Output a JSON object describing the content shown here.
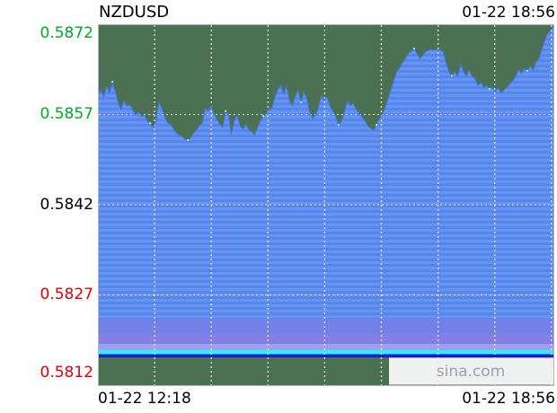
{
  "header": {
    "symbol": "NZDUSD",
    "timestamp": "01-22 18:56"
  },
  "axis": {
    "x_start_label": "01-22 12:18",
    "x_end_label": "01-22 18:56"
  },
  "watermark": {
    "text": "sina.com"
  },
  "palette": {
    "page_bg": "#ffffff",
    "plot_bg": "#4b7152",
    "border": "#b2b2b2",
    "grid": "#e2e6e2",
    "fill_stripe_a": "#6495f3",
    "fill_stripe_b": "#5884ec",
    "band_purple_1": "#7181e8",
    "band_purple_2": "#8280e4",
    "band_periwinkle": "#9f9ff0",
    "band_cyan": "#2cf0f4",
    "band_navy": "#1818cf",
    "line": "#4477dd",
    "speckle": "#86f8ff",
    "label_green": "#00aa22",
    "label_black": "#000000",
    "label_red": "#e00000",
    "watermark_bg": "#eff1f1",
    "watermark_text": "#9aa3ab"
  },
  "chart_data": {
    "type": "area",
    "title": "NZDUSD",
    "xlabel": "",
    "ylabel": "",
    "x_range_labels": [
      "01-22 12:18",
      "01-22 18:56"
    ],
    "ylim": [
      0.5812,
      0.5872
    ],
    "grid": true,
    "x_divisions": 8,
    "y_ticks": [
      {
        "value": 0.5872,
        "label": "0.5872",
        "color_key": "label_green"
      },
      {
        "value": 0.5857,
        "label": "0.5857",
        "color_key": "label_green"
      },
      {
        "value": 0.5842,
        "label": "0.5842",
        "color_key": "label_black"
      },
      {
        "value": 0.5827,
        "label": "0.5827",
        "color_key": "label_red"
      },
      {
        "value": 0.5812,
        "label": "0.5812",
        "color_key": "label_red"
      }
    ],
    "series_name": "NZDUSD price",
    "values": [
      0.58601,
      0.58611,
      0.58599,
      0.58617,
      0.58605,
      0.58623,
      0.58607,
      0.58589,
      0.58578,
      0.58593,
      0.58584,
      0.58586,
      0.58577,
      0.58569,
      0.58574,
      0.58566,
      0.58569,
      0.58559,
      0.58554,
      0.58548,
      0.58559,
      0.5859,
      0.58581,
      0.58566,
      0.58556,
      0.58553,
      0.58547,
      0.58539,
      0.58536,
      0.58533,
      0.58529,
      0.58526,
      0.58532,
      0.58539,
      0.58544,
      0.58551,
      0.58556,
      0.58581,
      0.58575,
      0.58584,
      0.58571,
      0.58562,
      0.58554,
      0.58548,
      0.58574,
      0.58569,
      0.58536,
      0.58559,
      0.58569,
      0.58551,
      0.58545,
      0.58554,
      0.58544,
      0.58541,
      0.58536,
      0.58548,
      0.58559,
      0.58566,
      0.58571,
      0.58578,
      0.58581,
      0.58599,
      0.58611,
      0.58618,
      0.58604,
      0.58617,
      0.58593,
      0.58584,
      0.58599,
      0.58611,
      0.58589,
      0.58607,
      0.58596,
      0.58574,
      0.58563,
      0.58569,
      0.58581,
      0.58602,
      0.58593,
      0.58599,
      0.58584,
      0.58575,
      0.58566,
      0.58551,
      0.58559,
      0.58574,
      0.58593,
      0.58584,
      0.58589,
      0.58578,
      0.58572,
      0.58566,
      0.58559,
      0.58551,
      0.58547,
      0.58544,
      0.58551,
      0.58563,
      0.58569,
      0.58581,
      0.58596,
      0.58611,
      0.58626,
      0.58641,
      0.58647,
      0.58656,
      0.58663,
      0.58671,
      0.58675,
      0.58678,
      0.58671,
      0.58663,
      0.58668,
      0.58675,
      0.58677,
      0.58678,
      0.58677,
      0.58678,
      0.58677,
      0.58674,
      0.58656,
      0.58641,
      0.58633,
      0.58641,
      0.58633,
      0.58653,
      0.58641,
      0.58633,
      0.58644,
      0.58633,
      0.58629,
      0.58618,
      0.58623,
      0.58614,
      0.58618,
      0.58611,
      0.58615,
      0.58608,
      0.58614,
      0.58605,
      0.58611,
      0.58615,
      0.58621,
      0.58626,
      0.58633,
      0.58644,
      0.58638,
      0.58647,
      0.58641,
      0.5865,
      0.58644,
      0.58656,
      0.58663,
      0.58678,
      0.58693,
      0.58704,
      0.5871,
      0.58716
    ]
  }
}
